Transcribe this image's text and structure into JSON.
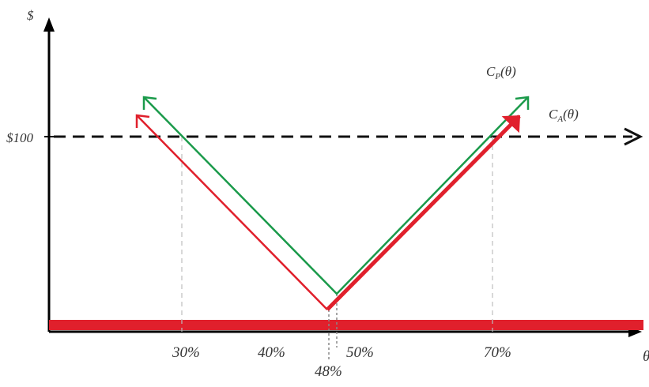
{
  "colors": {
    "axis": "#000000",
    "red": "#e0202c",
    "green": "#1a9a4a",
    "dashed": "#111111",
    "guide": "#bdbdbd",
    "text": "#333333"
  },
  "axis_labels": {
    "y_symbol": "$",
    "x_symbol": "θ"
  },
  "price_line": {
    "label": "$100"
  },
  "curve_labels": {
    "cp": {
      "base": "C",
      "sub": "P",
      "arg": "(θ)"
    },
    "ca": {
      "base": "C",
      "sub": "A",
      "arg": "(θ)"
    }
  },
  "x_ticks": [
    "30%",
    "40%",
    "50%",
    "70%",
    "48%"
  ]
}
